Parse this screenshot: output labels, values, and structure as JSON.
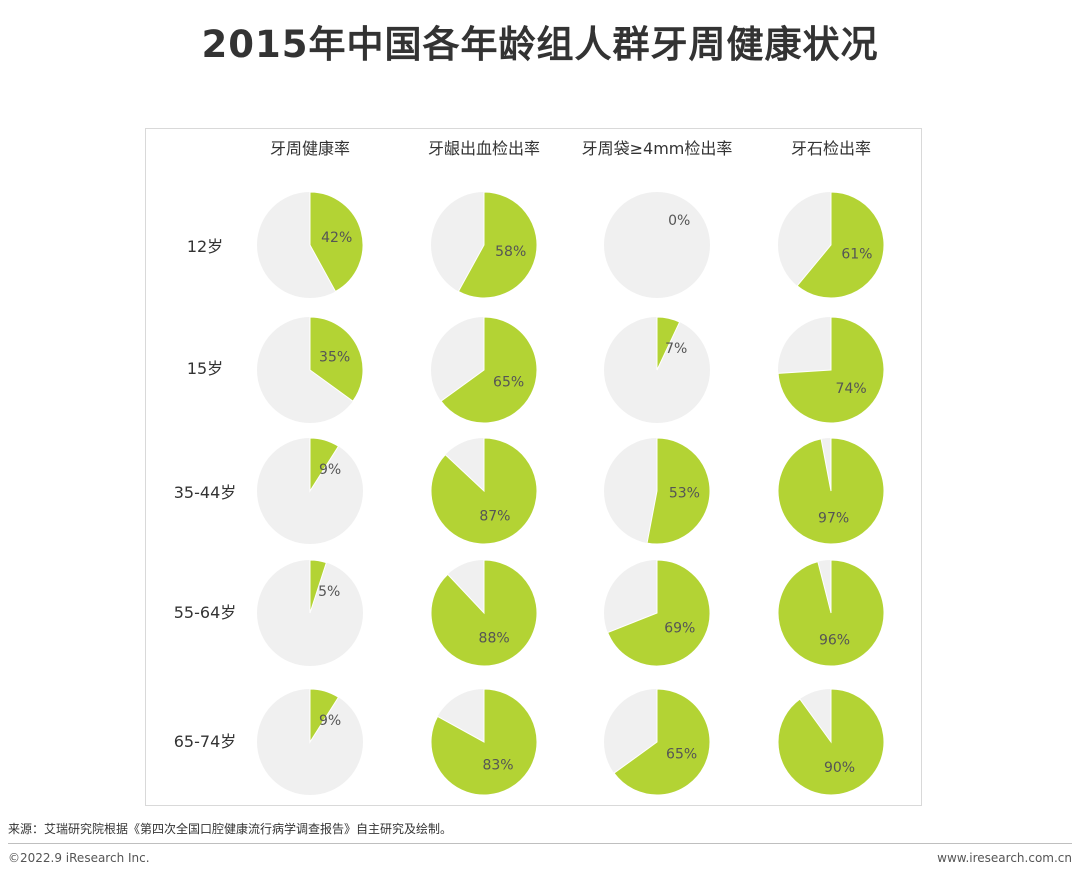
{
  "title": "2015年中国各年龄组人群牙周健康状况",
  "chart_data": {
    "type": "pie",
    "columns": [
      "牙周健康率",
      "牙龈出血检出率",
      "牙周袋≥4mm检出率",
      "牙石检出率"
    ],
    "rows": [
      "12岁",
      "15岁",
      "35-44岁",
      "55-64岁",
      "65-74岁"
    ],
    "values": [
      [
        42,
        58,
        0,
        61
      ],
      [
        35,
        65,
        7,
        74
      ],
      [
        9,
        87,
        53,
        97
      ],
      [
        5,
        88,
        69,
        96
      ],
      [
        9,
        83,
        65,
        90
      ]
    ],
    "value_suffix": "%",
    "colors": {
      "value": "#b3d334",
      "remainder": "#f0f0f0",
      "label": "#555555"
    }
  },
  "footer": {
    "source": "来源：艾瑞研究院根据《第四次全国口腔健康流行病学调查报告》自主研究及绘制。",
    "copyright": "©2022.9 iResearch Inc.",
    "website": "www.iresearch.com.cn"
  }
}
